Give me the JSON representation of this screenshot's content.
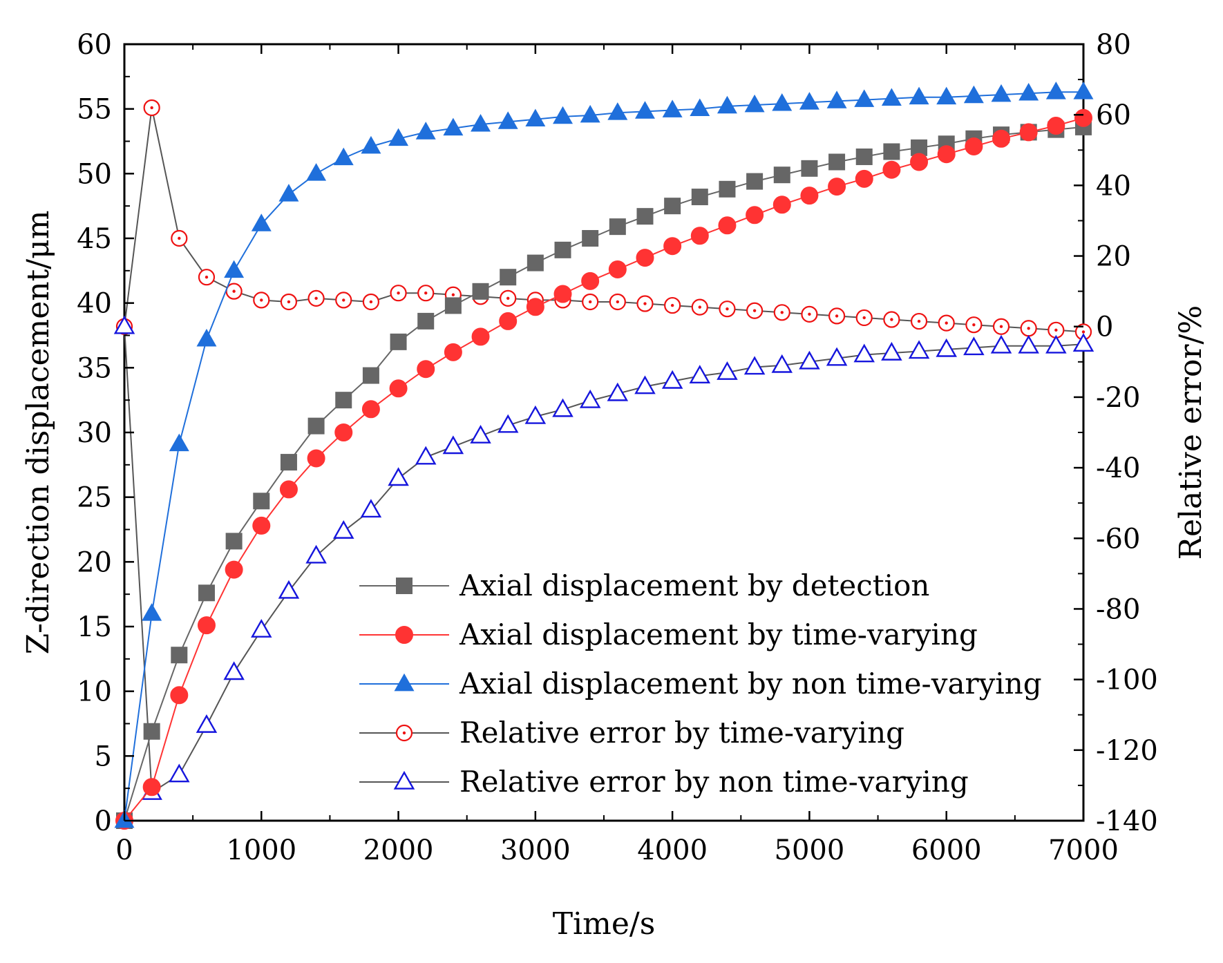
{
  "chart_data": {
    "type": "line",
    "x": [
      0,
      200,
      400,
      600,
      800,
      1000,
      1200,
      1400,
      1600,
      1800,
      2000,
      2200,
      2400,
      2600,
      2800,
      3000,
      3200,
      3400,
      3600,
      3800,
      4000,
      4200,
      4400,
      4600,
      4800,
      5000,
      5200,
      5400,
      5600,
      5800,
      6000,
      6200,
      6400,
      6600,
      6800,
      7000
    ],
    "xlabel": "Time/s",
    "ylabel": "Z-direction displacement/μm",
    "y2label": "Relative error/%",
    "xlim": [
      0,
      7000
    ],
    "ylim": [
      0,
      60
    ],
    "y2lim": [
      -140,
      80
    ],
    "xticks": [
      "0",
      "1000",
      "2000",
      "3000",
      "4000",
      "5000",
      "6000",
      "7000"
    ],
    "yticks": [
      "0",
      "5",
      "10",
      "15",
      "20",
      "25",
      "30",
      "35",
      "40",
      "45",
      "50",
      "55",
      "60"
    ],
    "y2ticks": [
      "-140",
      "-120",
      "-100",
      "-80",
      "-60",
      "-40",
      "-20",
      "0",
      "20",
      "40",
      "60",
      "80"
    ],
    "legend_position": "lower-right",
    "series": [
      {
        "name": "Axial displacement by detection",
        "axis": "left",
        "color": "#666666",
        "marker": "square",
        "filled": true,
        "values": [
          0,
          6.9,
          12.8,
          17.6,
          21.6,
          24.7,
          27.7,
          30.5,
          32.5,
          34.4,
          37.0,
          38.6,
          39.8,
          40.9,
          42.0,
          43.1,
          44.1,
          45.0,
          45.9,
          46.7,
          47.5,
          48.2,
          48.8,
          49.4,
          49.9,
          50.4,
          50.9,
          51.3,
          51.7,
          52.0,
          52.3,
          52.7,
          53.0,
          53.2,
          53.4,
          53.6
        ]
      },
      {
        "name": "Axial displacement by time-varying",
        "axis": "left",
        "color": "#ff3333",
        "marker": "circle",
        "filled": true,
        "values": [
          0,
          2.6,
          9.7,
          15.1,
          19.4,
          22.8,
          25.6,
          28.0,
          30.0,
          31.8,
          33.4,
          34.9,
          36.2,
          37.4,
          38.6,
          39.7,
          40.7,
          41.7,
          42.6,
          43.5,
          44.4,
          45.2,
          46.0,
          46.8,
          47.6,
          48.3,
          49.0,
          49.6,
          50.3,
          50.9,
          51.5,
          52.1,
          52.7,
          53.2,
          53.7,
          54.3
        ]
      },
      {
        "name": "Axial displacement by non time-varying",
        "axis": "left",
        "color": "#1f6fdb",
        "marker": "triangle",
        "filled": true,
        "values": [
          0,
          16.0,
          29.1,
          37.2,
          42.5,
          46.1,
          48.4,
          50.0,
          51.2,
          52.1,
          52.7,
          53.2,
          53.5,
          53.8,
          54.0,
          54.2,
          54.4,
          54.5,
          54.7,
          54.8,
          54.9,
          55.0,
          55.2,
          55.3,
          55.4,
          55.5,
          55.6,
          55.7,
          55.8,
          55.9,
          55.9,
          56.0,
          56.1,
          56.2,
          56.3,
          56.3
        ]
      },
      {
        "name": "Relative error by time-varying",
        "axis": "right",
        "color": "#ee1111",
        "marker": "dotted-circle",
        "filled": false,
        "values": [
          0,
          62,
          25,
          14,
          10,
          7.5,
          7,
          8,
          7.5,
          7,
          9.5,
          9.5,
          9,
          8.5,
          8,
          7.5,
          7.5,
          7,
          7,
          6.5,
          6,
          5.5,
          5,
          4.5,
          4,
          3.5,
          3,
          2.5,
          2,
          1.5,
          1,
          0.5,
          0,
          -0.5,
          -1,
          -1.5
        ]
      },
      {
        "name": "Relative error by non time-varying",
        "axis": "right",
        "color": "#1515dd",
        "marker": "triangle",
        "filled": false,
        "values": [
          0,
          -132,
          -127,
          -113,
          -98,
          -86,
          -75,
          -65,
          -58,
          -52,
          -43,
          -37,
          -34,
          -31,
          -28,
          -25.5,
          -23.5,
          -21,
          -19,
          -17,
          -15.5,
          -14,
          -13,
          -11.5,
          -11,
          -10,
          -9,
          -8,
          -7.5,
          -7,
          -6.5,
          -6,
          -5.5,
          -5.5,
          -5.5,
          -5
        ]
      }
    ]
  }
}
